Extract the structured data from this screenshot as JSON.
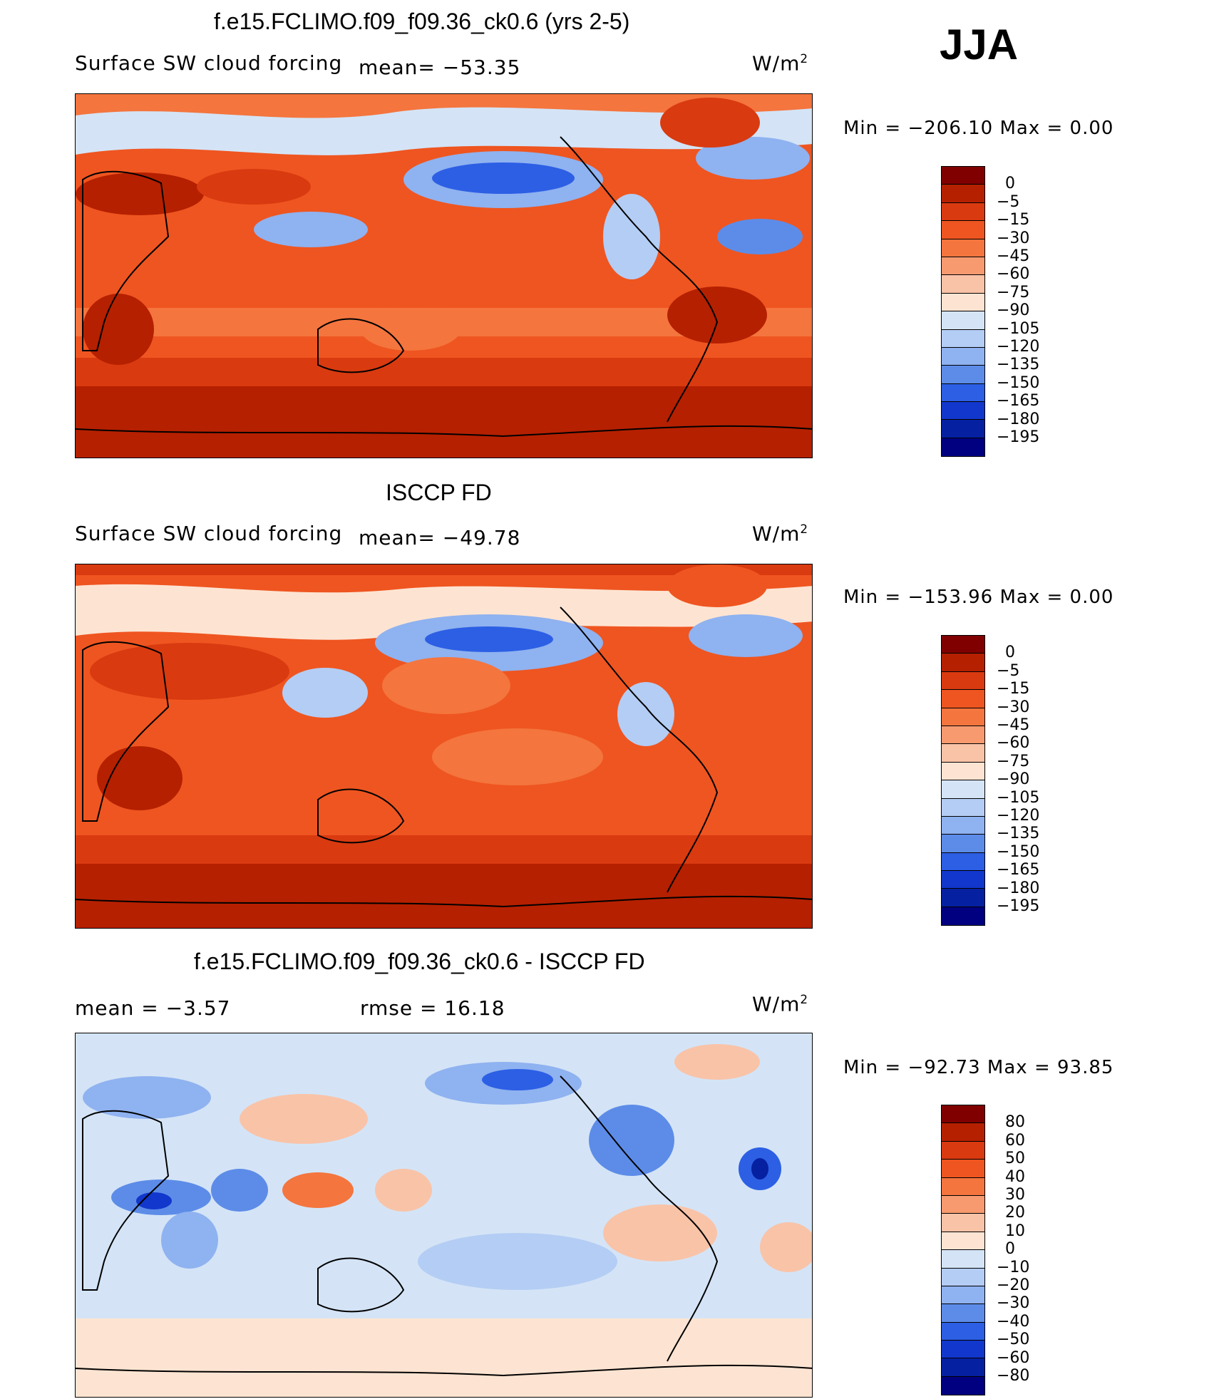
{
  "season": "JJA",
  "panels": [
    {
      "id": "model",
      "title": "f.e15.FCLIMO.f09_f09.36_ck0.6 (yrs 2-5)",
      "left_label": "Surface SW cloud forcing",
      "mean_label": "mean= −53.35",
      "units": "W/m",
      "units_sup": "2",
      "min_max": "Min = −206.10 Max =    0.00",
      "colorbar_labels": [
        "0",
        "−5",
        "−15",
        "−30",
        "−45",
        "−60",
        "−75",
        "−90",
        "−105",
        "−120",
        "−135",
        "−150",
        "−165",
        "−180",
        "−195"
      ]
    },
    {
      "id": "obs",
      "title": "ISCCP FD",
      "left_label": "Surface SW cloud forcing",
      "mean_label": "mean= −49.78",
      "units": "W/m",
      "units_sup": "2",
      "min_max": "Min = −153.96 Max =    0.00",
      "colorbar_labels": [
        "0",
        "−5",
        "−15",
        "−30",
        "−45",
        "−60",
        "−75",
        "−90",
        "−105",
        "−120",
        "−135",
        "−150",
        "−165",
        "−180",
        "−195"
      ]
    },
    {
      "id": "diff",
      "title": "f.e15.FCLIMO.f09_f09.36_ck0.6 - ISCCP FD",
      "left_label": "mean =   −3.57",
      "mean_label": "rmse =   16.18",
      "units": "W/m",
      "units_sup": "2",
      "min_max": "Min = −92.73 Max =  93.85",
      "colorbar_labels": [
        "80",
        "60",
        "50",
        "40",
        "30",
        "20",
        "10",
        "0",
        "−10",
        "−20",
        "−30",
        "−40",
        "−50",
        "−60",
        "−80"
      ]
    }
  ],
  "colors": {
    "abs_scale": [
      "#800000",
      "#b52000",
      "#d93a10",
      "#ef5520",
      "#f4753e",
      "#f79a70",
      "#f9c3a8",
      "#fde4d2",
      "#d4e4f6",
      "#b4cdf4",
      "#8fb2f0",
      "#5d8ce8",
      "#2c5fe4",
      "#1237cc",
      "#0520a0",
      "#000080"
    ],
    "diff_scale": [
      "#800000",
      "#b52000",
      "#d93a10",
      "#ef5520",
      "#f4753e",
      "#f79a70",
      "#f9c3a8",
      "#fde4d2",
      "#d4e4f6",
      "#b4cdf4",
      "#8fb2f0",
      "#5d8ce8",
      "#2c5fe4",
      "#1237cc",
      "#0520a0",
      "#000080"
    ]
  },
  "chart_data": [
    {
      "type": "heatmap",
      "title": "f.e15.FCLIMO.f09_f09.36_ck0.6 (yrs 2-5)",
      "subtitle": "Surface SW cloud forcing",
      "mean": -53.35,
      "units": "W/m2",
      "min": -206.1,
      "max": 0.0,
      "contour_levels": [
        0,
        -5,
        -15,
        -30,
        -45,
        -60,
        -75,
        -90,
        -105,
        -120,
        -135,
        -150,
        -165,
        -180,
        -195
      ],
      "projection": "cylindrical equidistant, Pacific-centered"
    },
    {
      "type": "heatmap",
      "title": "ISCCP FD",
      "subtitle": "Surface SW cloud forcing",
      "mean": -49.78,
      "units": "W/m2",
      "min": -153.96,
      "max": 0.0,
      "contour_levels": [
        0,
        -5,
        -15,
        -30,
        -45,
        -60,
        -75,
        -90,
        -105,
        -120,
        -135,
        -150,
        -165,
        -180,
        -195
      ],
      "projection": "cylindrical equidistant, Pacific-centered"
    },
    {
      "type": "heatmap",
      "title": "f.e15.FCLIMO.f09_f09.36_ck0.6 - ISCCP FD",
      "mean": -3.57,
      "rmse": 16.18,
      "units": "W/m2",
      "min": -92.73,
      "max": 93.85,
      "contour_levels": [
        80,
        60,
        50,
        40,
        30,
        20,
        10,
        0,
        -10,
        -20,
        -30,
        -40,
        -50,
        -60,
        -80
      ],
      "projection": "cylindrical equidistant, Pacific-centered"
    }
  ]
}
